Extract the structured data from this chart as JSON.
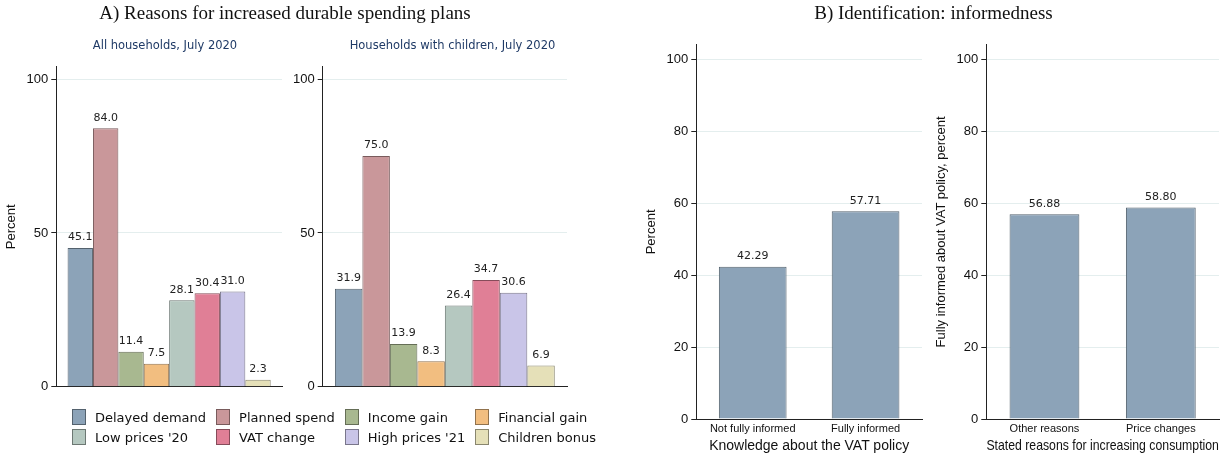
{
  "chart_data": [
    {
      "type": "bar",
      "title": "A) Reasons for increased durable spending plans",
      "subtitle": "All households, July 2020",
      "ylabel": "Percent",
      "categories": [
        null
      ],
      "series": [
        {
          "name": "Delayed demand",
          "color": "#8ca3b8",
          "values": [
            45.1
          ],
          "value_labels": [
            "45.1"
          ]
        },
        {
          "name": "Planned spend",
          "color": "#c9979a",
          "values": [
            84.0
          ],
          "value_labels": [
            "84.0"
          ]
        },
        {
          "name": "Income gain",
          "color": "#a8b890",
          "values": [
            11.4
          ],
          "value_labels": [
            "11.4"
          ]
        },
        {
          "name": "Financial gain",
          "color": "#f2be80",
          "values": [
            7.5
          ],
          "value_labels": [
            "7.5"
          ]
        },
        {
          "name": "Low prices '20",
          "color": "#b5c8c0",
          "values": [
            28.1
          ],
          "value_labels": [
            "28.1"
          ]
        },
        {
          "name": "VAT change",
          "color": "#e07f96",
          "values": [
            30.4
          ],
          "value_labels": [
            "30.4"
          ]
        },
        {
          "name": "High prices '21",
          "color": "#c9c5e8",
          "values": [
            31.0
          ],
          "value_labels": [
            "31.0"
          ]
        },
        {
          "name": "Children bonus",
          "color": "#e5e0b8",
          "values": [
            2.3
          ],
          "value_labels": [
            "2.3"
          ]
        }
      ],
      "ylim": [
        0,
        104
      ],
      "yticks": [
        0,
        50,
        100
      ],
      "grid": "y",
      "legend": "bottom"
    },
    {
      "type": "bar",
      "subtitle": "Households with children, July 2020",
      "categories": [
        null
      ],
      "series": [
        {
          "color": "#8ca3b8",
          "values": [
            31.9
          ],
          "value_labels": [
            "31.9"
          ]
        },
        {
          "color": "#c9979a",
          "values": [
            75.0
          ],
          "value_labels": [
            "75.0"
          ]
        },
        {
          "color": "#a8b890",
          "values": [
            13.9
          ],
          "value_labels": [
            "13.9"
          ]
        },
        {
          "color": "#f2be80",
          "values": [
            8.3
          ],
          "value_labels": [
            "8.3"
          ]
        },
        {
          "color": "#b5c8c0",
          "values": [
            26.4
          ],
          "value_labels": [
            "26.4"
          ]
        },
        {
          "color": "#e07f96",
          "values": [
            34.7
          ],
          "value_labels": [
            "34.7"
          ]
        },
        {
          "color": "#c9c5e8",
          "values": [
            30.6
          ],
          "value_labels": [
            "30.6"
          ]
        },
        {
          "color": "#e5e0b8",
          "values": [
            6.9
          ],
          "value_labels": [
            "6.9"
          ]
        }
      ],
      "ylim": [
        0,
        104
      ],
      "yticks": [
        0,
        50,
        100
      ],
      "grid": "y"
    },
    {
      "type": "bar",
      "title": "B) Identification: informedness",
      "xlabel": "Knowledge about the VAT policy",
      "ylabel": "Percent",
      "categories": [
        "Not fully informed",
        "Fully informed"
      ],
      "values": [
        42.29,
        57.71
      ],
      "value_labels": [
        "42.29",
        "57.71"
      ],
      "color": "#8ca3b8",
      "ylim": [
        0,
        104
      ],
      "yticks": [
        0,
        20,
        40,
        60,
        80,
        100
      ],
      "grid": "y"
    },
    {
      "type": "bar",
      "xlabel": "Stated reasons for increasing consumption",
      "ylabel": "Fully informed about VAT policy, percent",
      "categories": [
        "Other reasons",
        "Price changes"
      ],
      "values": [
        56.88,
        58.8
      ],
      "value_labels": [
        "56.88",
        "58.80"
      ],
      "color": "#8ca3b8",
      "ylim": [
        0,
        104
      ],
      "yticks": [
        0,
        20,
        40,
        60,
        80,
        100
      ],
      "grid": "y"
    }
  ]
}
